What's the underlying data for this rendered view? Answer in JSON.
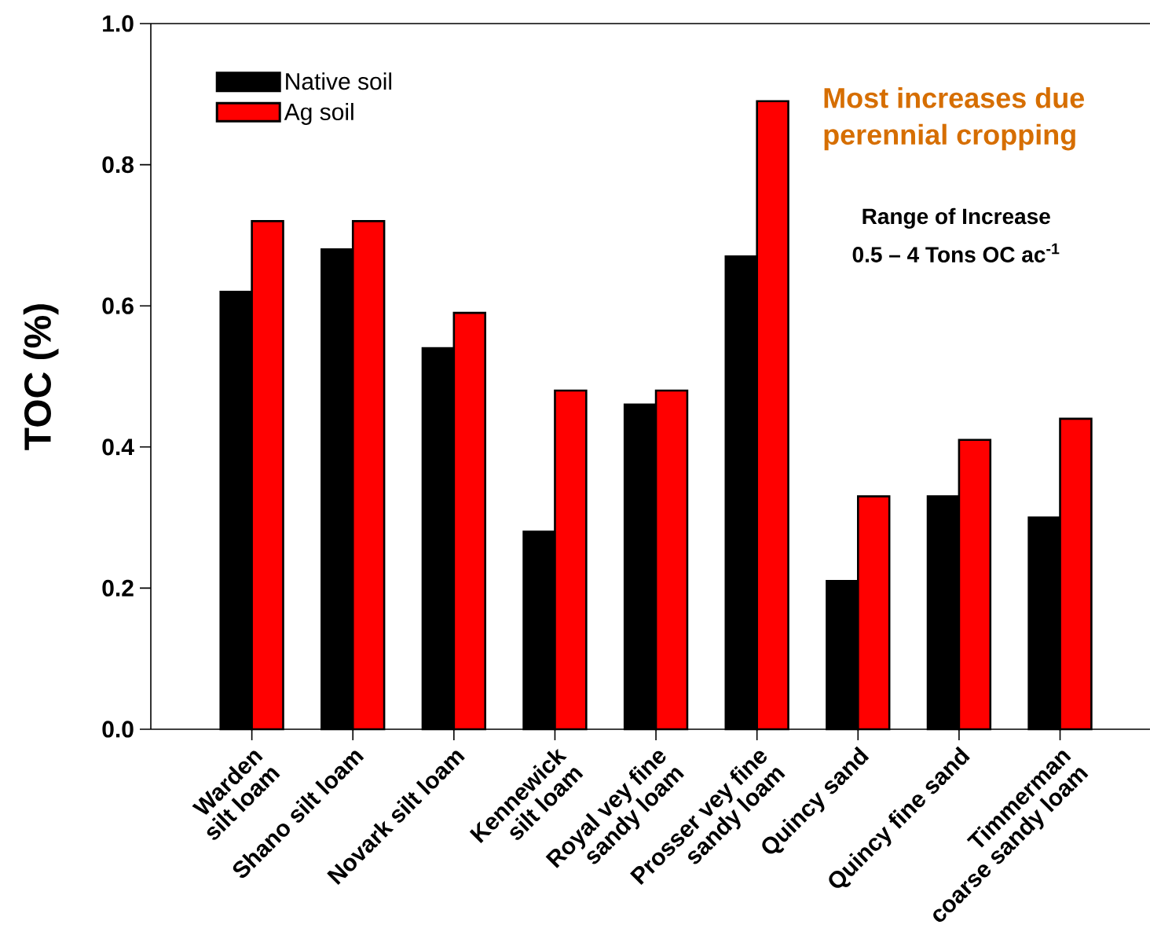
{
  "chart_data": {
    "type": "bar",
    "ylabel": "TOC (%)",
    "categories": [
      "Warden silt loam",
      "Shano silt loam",
      "Novark silt loam",
      "Kennewick silt loam",
      "Royal vey fine sandy loam",
      "Prosser vey fine sandy loam",
      "Quincy sand",
      "Quincy fine sand",
      "Timmerman coarse sandy loam"
    ],
    "series": [
      {
        "name": "Native soil",
        "color": "#000000",
        "values": [
          0.62,
          0.68,
          0.54,
          0.28,
          0.46,
          0.67,
          0.21,
          0.33,
          0.3
        ]
      },
      {
        "name": "Ag soil",
        "color": "#ff0000",
        "values": [
          0.72,
          0.72,
          0.59,
          0.48,
          0.48,
          0.89,
          0.33,
          0.41,
          0.44
        ]
      }
    ],
    "ylim": [
      0,
      1.0
    ],
    "yticks": [
      {
        "value": 0,
        "label": "0.0"
      },
      0.2,
      0.4,
      0.6,
      0.8,
      {
        "value": 1.0,
        "label": "1.0"
      }
    ],
    "legend": "top left",
    "grid": false,
    "annotations": [
      "Most increases due",
      "perennial cropping",
      "Range of Increase",
      "0.5 – 4 Tons OC ac$^{-1}$"
    ]
  }
}
